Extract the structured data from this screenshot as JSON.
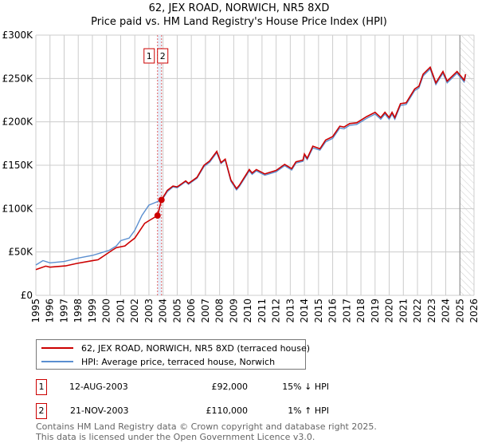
{
  "title": "62, JEX ROAD, NORWICH, NR5 8XD",
  "subtitle": "Price paid vs. HM Land Registry's House Price Index (HPI)",
  "chart_data": {
    "type": "line",
    "title": "62, JEX ROAD, NORWICH, NR5 8XD",
    "subtitle": "Price paid vs. HM Land Registry's House Price Index (HPI)",
    "xlim": [
      1995,
      2026
    ],
    "ylim": [
      0,
      300000
    ],
    "x_ticks": [
      "1995",
      "1996",
      "1997",
      "1998",
      "1999",
      "2000",
      "2001",
      "2002",
      "2003",
      "2004",
      "2005",
      "2006",
      "2007",
      "2008",
      "2009",
      "2010",
      "2011",
      "2012",
      "2013",
      "2014",
      "2015",
      "2016",
      "2017",
      "2018",
      "2019",
      "2020",
      "2021",
      "2022",
      "2023",
      "2024",
      "2025",
      "2026"
    ],
    "y_ticks": [
      {
        "v": 0,
        "label": "£0"
      },
      {
        "v": 50000,
        "label": "£50K"
      },
      {
        "v": 100000,
        "label": "£100K"
      },
      {
        "v": 150000,
        "label": "£150K"
      },
      {
        "v": 200000,
        "label": "£200K"
      },
      {
        "v": 250000,
        "label": "£250K"
      },
      {
        "v": 300000,
        "label": "£300K"
      }
    ],
    "grid": true,
    "forecast_hatch_from": 2025.0,
    "series": [
      {
        "name": "62, JEX ROAD, NORWICH, NR5 8XD (terraced house)",
        "color": "#cc0000",
        "x": [
          1995.0,
          1995.7,
          1996.0,
          1997.1,
          1997.9,
          1999.0,
          1999.4,
          2000.4,
          2000.7,
          2001.3,
          2001.6,
          2002.0,
          2002.7,
          2003.0,
          2003.61,
          2003.89,
          2004.3,
          2004.7,
          2005.0,
          2005.6,
          2005.8,
          2006.4,
          2006.9,
          2007.3,
          2007.8,
          2008.1,
          2008.4,
          2008.8,
          2009.2,
          2009.4,
          2010.1,
          2010.3,
          2010.6,
          2011.2,
          2012.0,
          2012.6,
          2013.1,
          2013.4,
          2013.9,
          2014.0,
          2014.2,
          2014.6,
          2015.1,
          2015.5,
          2016.0,
          2016.5,
          2016.8,
          2017.2,
          2017.7,
          2018.4,
          2019.0,
          2019.4,
          2019.7,
          2020.0,
          2020.2,
          2020.4,
          2020.8,
          2021.2,
          2021.8,
          2022.1,
          2022.4,
          2022.9,
          2023.3,
          2023.8,
          2024.1,
          2024.8,
          2025.3,
          2025.4
        ],
        "y": [
          29700,
          33700,
          32500,
          34000,
          36800,
          39900,
          41000,
          52000,
          55000,
          57000,
          61000,
          66000,
          83000,
          86000,
          92000,
          110000,
          121000,
          126000,
          125000,
          132000,
          129000,
          136000,
          150000,
          155000,
          166000,
          153000,
          157000,
          133000,
          123000,
          127000,
          145000,
          141000,
          145000,
          140000,
          144000,
          151000,
          146000,
          154000,
          156000,
          163000,
          158000,
          172000,
          169000,
          179000,
          183000,
          195000,
          194000,
          198000,
          199000,
          206000,
          211000,
          205000,
          211000,
          205000,
          211000,
          205000,
          221000,
          222000,
          238000,
          241000,
          255000,
          263000,
          245000,
          258000,
          247000,
          258000,
          248000,
          255000
        ]
      },
      {
        "name": "HPI: Average price, terraced house, Norwich",
        "color": "#5b8fd0",
        "x": [
          1995.0,
          1995.5,
          1996.0,
          1997.0,
          1998.0,
          1999.0,
          2000.2,
          2000.7,
          2001.0,
          2001.6,
          2002.0,
          2002.5,
          2003.0,
          2003.6,
          2004.0,
          2004.3,
          2004.7,
          2005.0,
          2005.6,
          2005.8,
          2006.4,
          2006.9,
          2007.3,
          2007.8,
          2008.1,
          2008.4,
          2008.8,
          2009.2,
          2009.4,
          2010.1,
          2010.3,
          2010.6,
          2011.2,
          2012.0,
          2012.6,
          2013.1,
          2013.4,
          2013.9,
          2014.0,
          2014.2,
          2014.6,
          2015.1,
          2015.5,
          2016.0,
          2016.5,
          2016.8,
          2017.2,
          2017.7,
          2018.4,
          2019.0,
          2019.4,
          2019.7,
          2020.0,
          2020.2,
          2020.4,
          2020.8,
          2021.2,
          2021.8,
          2022.1,
          2022.4,
          2022.9,
          2023.3,
          2023.8,
          2024.1,
          2024.8,
          2025.3,
          2025.4
        ],
        "y": [
          35000,
          40000,
          37500,
          39000,
          43000,
          46000,
          52000,
          57000,
          63000,
          66000,
          75000,
          92000,
          104000,
          108000,
          112000,
          119500,
          125000,
          124000,
          131000,
          128000,
          135000,
          148500,
          153500,
          164500,
          152000,
          156000,
          131500,
          121500,
          125500,
          143500,
          139500,
          143500,
          138500,
          142500,
          149500,
          144500,
          152500,
          154500,
          161000,
          156500,
          170000,
          167500,
          177000,
          181000,
          193000,
          192000,
          196000,
          197000,
          204000,
          209000,
          203000,
          209000,
          203000,
          209000,
          203000,
          219000,
          220000,
          236000,
          239000,
          253000,
          261000,
          243000,
          256000,
          245000,
          256000,
          246000,
          253000
        ]
      }
    ],
    "annotations": [
      {
        "label": "1",
        "x": 2003.61,
        "price": 92000
      },
      {
        "label": "2",
        "x": 2003.89,
        "price": 110000
      }
    ]
  },
  "legend": [
    {
      "label": "62, JEX ROAD, NORWICH, NR5 8XD (terraced house)",
      "color": "#cc0000"
    },
    {
      "label": "HPI: Average price, terraced house, Norwich",
      "color": "#5b8fd0"
    }
  ],
  "transactions": [
    {
      "num": "1",
      "date": "12-AUG-2003",
      "price": "£92,000",
      "hpi": "15% ↓ HPI"
    },
    {
      "num": "2",
      "date": "21-NOV-2003",
      "price": "£110,000",
      "hpi": "1% ↑ HPI"
    }
  ],
  "footer": {
    "line1": "Contains HM Land Registry data © Crown copyright and database right 2025.",
    "line2": "This data is licensed under the Open Government Licence v3.0."
  }
}
